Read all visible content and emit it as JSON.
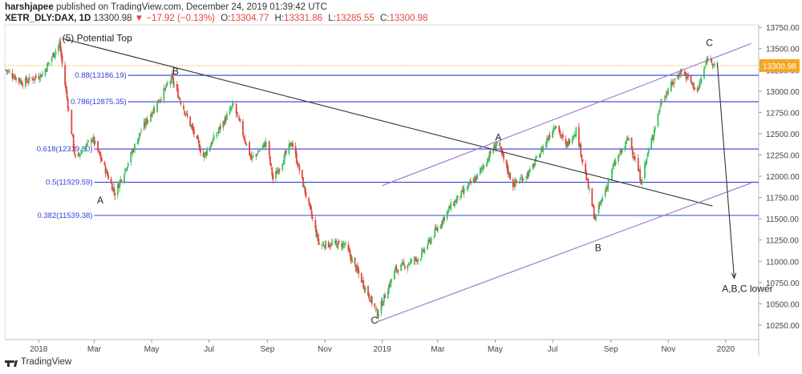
{
  "header": {
    "author": "harshjapee",
    "published_text": "published on TradingView.com, December 24, 2019 01:39:42 UTC",
    "symbol": "XETR_DLY:DAX, 1D",
    "last_price": "13300.98",
    "arrow": "▼",
    "change": "−17.92 (−0.13%)",
    "open_label": "O:",
    "open": "13304.77",
    "high_label": "H:",
    "high": "13331.86",
    "low_label": "L:",
    "low": "13285.55",
    "close_label": "C:",
    "close": "13300.98"
  },
  "footer": {
    "brand": "TradingView"
  },
  "colors": {
    "up": "#3cc060",
    "down": "#e0463e",
    "fib": "#2f3fd6",
    "channel": "#a070d0",
    "trend": "#333333",
    "price_tag": "#f5a623",
    "price_line": "#f5a623"
  },
  "chart_data": {
    "type": "candlestick",
    "title": "",
    "xlabel": "",
    "ylabel": "",
    "x_range": [
      "2017-11-26",
      "2020-02-05"
    ],
    "ylim": [
      10080,
      13780
    ],
    "y_ticks": [
      "13750.00",
      "13500.00",
      "13250.00",
      "13000.00",
      "12750.00",
      "12500.00",
      "12250.00",
      "12000.00",
      "11750.00",
      "11500.00",
      "11250.00",
      "11000.00",
      "10750.00",
      "10500.00",
      "10250.00"
    ],
    "x_ticks": [
      {
        "date": "2018-01-01",
        "label": "2018"
      },
      {
        "date": "2018-03-01",
        "label": "Mar"
      },
      {
        "date": "2018-05-01",
        "label": "May"
      },
      {
        "date": "2018-07-01",
        "label": "Jul"
      },
      {
        "date": "2018-09-01",
        "label": "Sep"
      },
      {
        "date": "2018-11-01",
        "label": "Nov"
      },
      {
        "date": "2019-01-01",
        "label": "2019"
      },
      {
        "date": "2019-03-01",
        "label": "Mar"
      },
      {
        "date": "2019-05-01",
        "label": "May"
      },
      {
        "date": "2019-07-01",
        "label": "Jul"
      },
      {
        "date": "2019-09-01",
        "label": "Sep"
      },
      {
        "date": "2019-11-01",
        "label": "Nov"
      },
      {
        "date": "2020-01-01",
        "label": "2020"
      }
    ],
    "price_path": [
      {
        "date": "2017-11-27",
        "value": 13250
      },
      {
        "date": "2017-12-15",
        "value": 13100
      },
      {
        "date": "2018-01-05",
        "value": 13200
      },
      {
        "date": "2018-01-23",
        "value": 13560
      },
      {
        "date": "2018-02-09",
        "value": 12200
      },
      {
        "date": "2018-02-27",
        "value": 12450
      },
      {
        "date": "2018-03-23",
        "value": 11800
      },
      {
        "date": "2018-04-20",
        "value": 12540
      },
      {
        "date": "2018-05-22",
        "value": 13150
      },
      {
        "date": "2018-06-25",
        "value": 12230
      },
      {
        "date": "2018-07-27",
        "value": 12840
      },
      {
        "date": "2018-08-15",
        "value": 12200
      },
      {
        "date": "2018-08-31",
        "value": 12400
      },
      {
        "date": "2018-09-07",
        "value": 11960
      },
      {
        "date": "2018-09-27",
        "value": 12400
      },
      {
        "date": "2018-10-26",
        "value": 11200
      },
      {
        "date": "2018-11-22",
        "value": 11200
      },
      {
        "date": "2018-12-27",
        "value": 10380
      },
      {
        "date": "2019-01-15",
        "value": 10900
      },
      {
        "date": "2019-02-10",
        "value": 11050
      },
      {
        "date": "2019-03-15",
        "value": 11650
      },
      {
        "date": "2019-04-12",
        "value": 12000
      },
      {
        "date": "2019-05-03",
        "value": 12400
      },
      {
        "date": "2019-05-20",
        "value": 11900
      },
      {
        "date": "2019-06-07",
        "value": 12050
      },
      {
        "date": "2019-07-04",
        "value": 12620
      },
      {
        "date": "2019-07-15",
        "value": 12350
      },
      {
        "date": "2019-07-26",
        "value": 12550
      },
      {
        "date": "2019-08-15",
        "value": 11500
      },
      {
        "date": "2019-09-05",
        "value": 12150
      },
      {
        "date": "2019-09-20",
        "value": 12450
      },
      {
        "date": "2019-10-03",
        "value": 11950
      },
      {
        "date": "2019-10-25",
        "value": 12900
      },
      {
        "date": "2019-11-15",
        "value": 13250
      },
      {
        "date": "2019-12-02",
        "value": 13000
      },
      {
        "date": "2019-12-13",
        "value": 13400
      },
      {
        "date": "2019-12-23",
        "value": 13300
      }
    ],
    "fib_levels": [
      {
        "label": "0.88(13186.19)",
        "value": 13186.19,
        "start": "2018-04-06"
      },
      {
        "label": "0.786(12875.35)",
        "value": 12875.35,
        "start": "2018-04-06"
      },
      {
        "label": "0.618(12319.80)",
        "value": 12319.8,
        "start": "2018-03-01"
      },
      {
        "label": "0.5(11929.59)",
        "value": 11929.59,
        "start": "2018-03-01"
      },
      {
        "label": "0.382(11539.38)",
        "value": 11539.38,
        "start": "2018-03-01"
      }
    ],
    "lines": [
      {
        "kind": "trend",
        "from": {
          "date": "2018-01-26",
          "value": 13620
        },
        "to": {
          "date": "2019-12-18",
          "value": 11650
        }
      },
      {
        "kind": "channel",
        "from": {
          "date": "2018-12-27",
          "value": 10290
        },
        "to": {
          "date": "2020-01-28",
          "value": 11920
        }
      },
      {
        "kind": "channel",
        "from": {
          "date": "2019-01-01",
          "value": 11890
        },
        "to": {
          "date": "2020-01-28",
          "value": 13560
        }
      },
      {
        "kind": "projection",
        "from": {
          "date": "2019-12-23",
          "value": 13330
        },
        "to": {
          "date": "2020-01-10",
          "value": 10800
        }
      }
    ],
    "annotations": [
      {
        "text": "(5) Potential Top",
        "date": "2018-01-26",
        "value": 13585
      },
      {
        "text": "B",
        "date": "2018-05-23",
        "value": 13195
      },
      {
        "text": "A",
        "date": "2018-03-04",
        "value": 11680
      },
      {
        "text": "A",
        "date": "2019-05-01",
        "value": 12420
      },
      {
        "text": "C",
        "date": "2018-12-20",
        "value": 10270
      },
      {
        "text": "B",
        "date": "2019-08-15",
        "value": 11120
      },
      {
        "text": "C",
        "date": "2019-12-11",
        "value": 13530
      },
      {
        "text": "A,B,C lower",
        "date": "2019-12-28",
        "value": 10640
      }
    ],
    "current_price": {
      "value": 13300.98,
      "label": "13300.98"
    },
    "grid": true,
    "legend": "none"
  }
}
